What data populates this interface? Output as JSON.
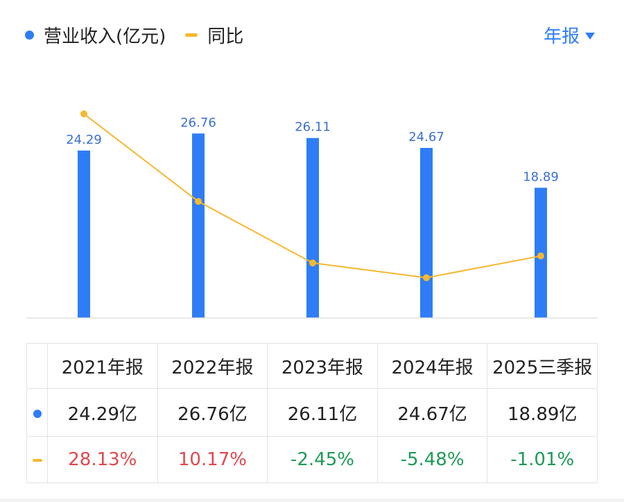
{
  "legend": {
    "revenue_label": "营业收入(亿元)",
    "yoy_label": "同比"
  },
  "period_selector": {
    "label": "年报"
  },
  "colors": {
    "bar": "#2f7df6",
    "line": "#f5b82e",
    "positive": "#e0484e",
    "negative": "#1e9a58"
  },
  "chart_data": {
    "type": "bar",
    "categories": [
      "2021年报",
      "2022年报",
      "2023年报",
      "2024年报",
      "2025三季报"
    ],
    "series": [
      {
        "name": "营业收入(亿元)",
        "type": "bar",
        "values": [
          24.29,
          26.76,
          26.11,
          24.67,
          18.89
        ],
        "labels": [
          "24.29",
          "26.76",
          "26.11",
          "24.67",
          "18.89"
        ]
      },
      {
        "name": "同比",
        "type": "line",
        "values": [
          28.13,
          10.17,
          -2.45,
          -5.48,
          -1.01
        ]
      }
    ],
    "grid": false,
    "legend_position": "top-left"
  },
  "table": {
    "headers": [
      "2021年报",
      "2022年报",
      "2023年报",
      "2024年报",
      "2025三季报"
    ],
    "revenue_row": [
      "24.29亿",
      "26.76亿",
      "26.11亿",
      "24.67亿",
      "18.89亿"
    ],
    "yoy_row": [
      "28.13%",
      "10.17%",
      "-2.45%",
      "-5.48%",
      "-1.01%"
    ]
  }
}
